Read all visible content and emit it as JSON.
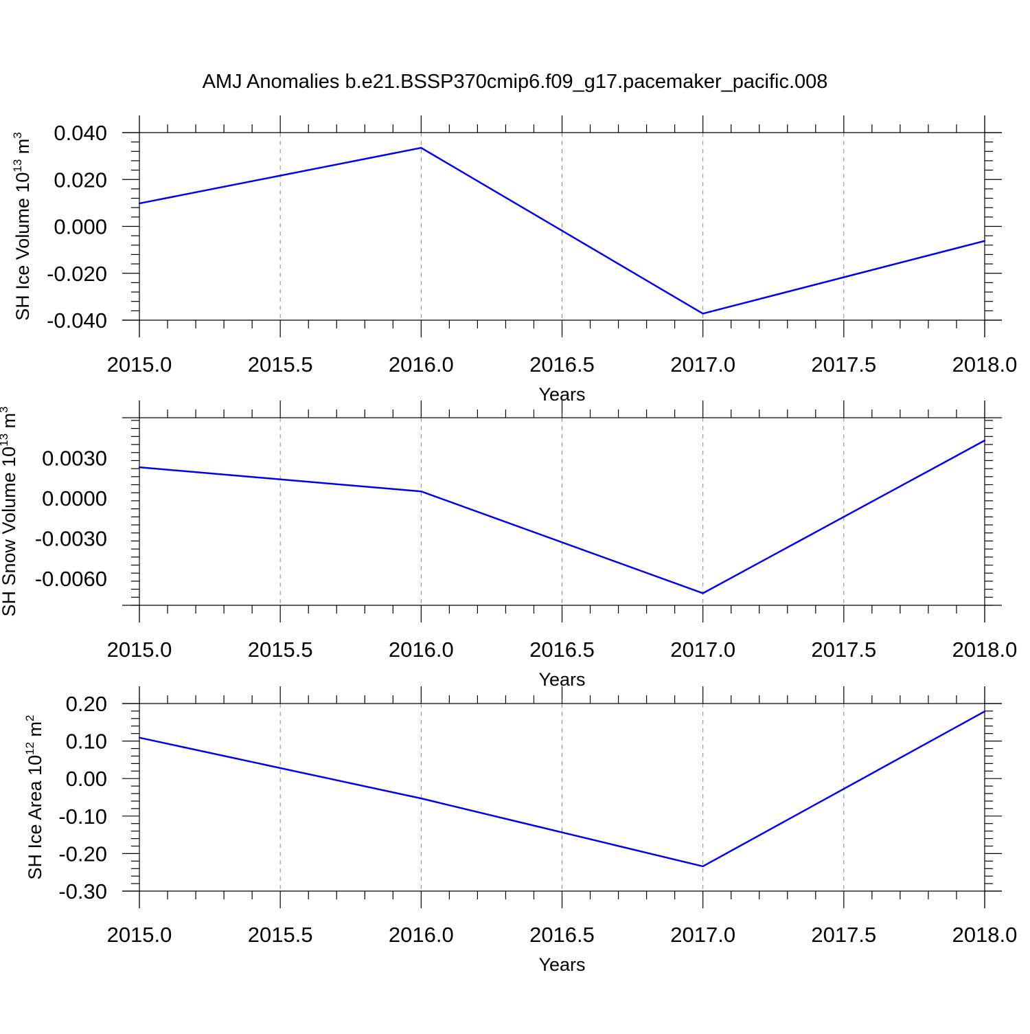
{
  "title": "AMJ Anomalies b.e21.BSSP370cmip6.f09_g17.pacemaker_pacific.008",
  "colors": {
    "series": "#0000ee",
    "axis": "#000000",
    "grid": "#888888"
  },
  "chart_data": [
    {
      "type": "line",
      "title": "",
      "xlabel": "Years",
      "ylabel": "SH Ice Volume 10",
      "ylabel_exp": "13",
      "ylabel_unit": " m",
      "ylabel_unit_exp": "3",
      "xlim": [
        2015.0,
        2018.0
      ],
      "ylim": [
        -0.04,
        0.04
      ],
      "grid": "x-dashed",
      "x_ticks": [
        "2015.0",
        "2015.5",
        "2016.0",
        "2016.5",
        "2017.0",
        "2017.5",
        "2018.0"
      ],
      "y_ticks": [
        "0.040",
        "0.020",
        "0.000",
        "-0.020",
        "-0.040"
      ],
      "series": [
        {
          "x": [
            2015,
            2016,
            2017,
            2018
          ],
          "y": [
            0.0098,
            0.0335,
            -0.0372,
            -0.0062
          ]
        }
      ]
    },
    {
      "type": "line",
      "title": "",
      "xlabel": "Years",
      "ylabel": "SH Snow Volume 10",
      "ylabel_exp": "13",
      "ylabel_unit": " m",
      "ylabel_unit_exp": "3",
      "xlim": [
        2015.0,
        2018.0
      ],
      "ylim": [
        -0.008,
        0.006
      ],
      "grid": "x-dashed",
      "x_ticks": [
        "2015.0",
        "2015.5",
        "2016.0",
        "2016.5",
        "2017.0",
        "2017.5",
        "2018.0"
      ],
      "y_ticks": [
        "0.0030",
        "0.0000",
        "-0.0030",
        "-0.0060"
      ],
      "series": [
        {
          "x": [
            2015,
            2016,
            2017,
            2018
          ],
          "y": [
            0.0023,
            0.0005,
            -0.0071,
            0.0043
          ]
        }
      ]
    },
    {
      "type": "line",
      "title": "",
      "xlabel": "Years",
      "ylabel": "SH Ice Area 10",
      "ylabel_exp": "12",
      "ylabel_unit": " m",
      "ylabel_unit_exp": "2",
      "xlim": [
        2015.0,
        2018.0
      ],
      "ylim": [
        -0.3,
        0.2
      ],
      "grid": "x-dashed",
      "x_ticks": [
        "2015.0",
        "2015.5",
        "2016.0",
        "2016.5",
        "2017.0",
        "2017.5",
        "2018.0"
      ],
      "y_ticks": [
        "0.20",
        "0.10",
        "0.00",
        "-0.10",
        "-0.20",
        "-0.30"
      ],
      "series": [
        {
          "x": [
            2015,
            2016,
            2017,
            2018
          ],
          "y": [
            0.109,
            -0.053,
            -0.234,
            0.179
          ]
        }
      ]
    }
  ]
}
